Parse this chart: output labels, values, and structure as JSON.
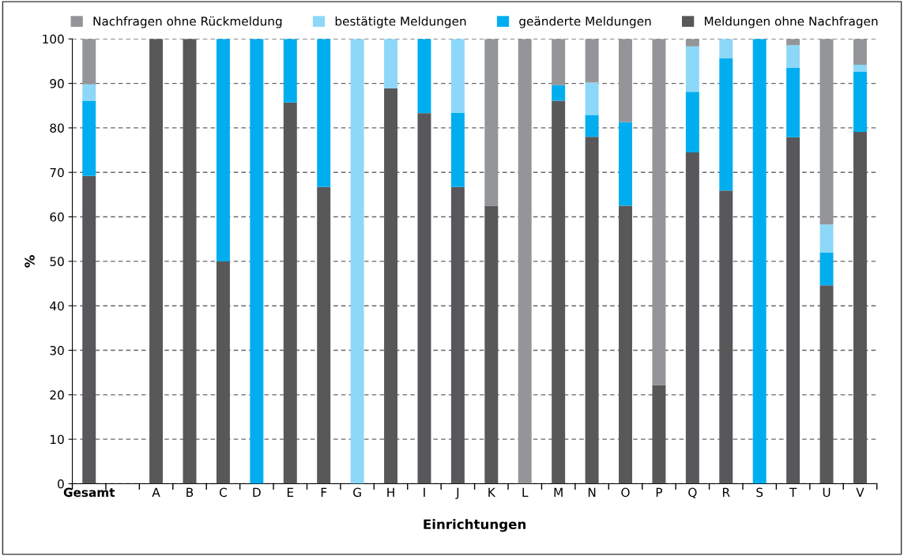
{
  "chart_data": {
    "type": "bar",
    "stacked": true,
    "xlabel": "Einrichtungen",
    "ylabel": "%",
    "categories": [
      "Gesamt",
      null,
      "A",
      "B",
      "C",
      "D",
      "E",
      "F",
      "G",
      "H",
      "I",
      "J",
      "K",
      "L",
      "M",
      "N",
      "O",
      "P",
      "Q",
      "R",
      "S",
      "T",
      "U",
      "V"
    ],
    "series": [
      {
        "name": "Meldungen ohne Nachfragen",
        "color": "#58585a",
        "values": [
          69.2,
          null,
          100,
          100,
          50,
          null,
          85.7,
          66.7,
          null,
          88.9,
          83.3,
          66.7,
          62.5,
          null,
          86.1,
          78.0,
          62.5,
          22.2,
          74.5,
          65.9,
          null,
          77.9,
          44.6,
          79.1
        ]
      },
      {
        "name": "geänderte Meldungen",
        "color": "#00aeef",
        "values": [
          16.9,
          null,
          null,
          null,
          50,
          100,
          14.3,
          33.3,
          null,
          null,
          16.7,
          16.7,
          null,
          null,
          3.5,
          4.9,
          18.8,
          null,
          13.6,
          29.8,
          100,
          15.6,
          7.4,
          13.5
        ]
      },
      {
        "name": "bestätigte Meldungen",
        "color": "#8dd8f8",
        "values": [
          3.7,
          null,
          null,
          null,
          null,
          null,
          null,
          null,
          100,
          11.1,
          null,
          16.6,
          null,
          null,
          null,
          7.3,
          null,
          null,
          10.2,
          4.3,
          null,
          5.1,
          6.3,
          1.6
        ]
      },
      {
        "name": "Nachfragen ohne Rückmeldung",
        "color": "#939598",
        "values": [
          10.2,
          null,
          null,
          null,
          null,
          null,
          null,
          null,
          null,
          null,
          null,
          null,
          37.5,
          100,
          10.4,
          9.8,
          18.7,
          77.8,
          1.7,
          null,
          null,
          1.4,
          41.7,
          5.8
        ]
      }
    ],
    "ylim": [
      0,
      100
    ],
    "yticks": [
      0,
      10,
      20,
      30,
      40,
      50,
      60,
      70,
      80,
      90,
      100
    ],
    "grid": "y",
    "legend": "top"
  }
}
